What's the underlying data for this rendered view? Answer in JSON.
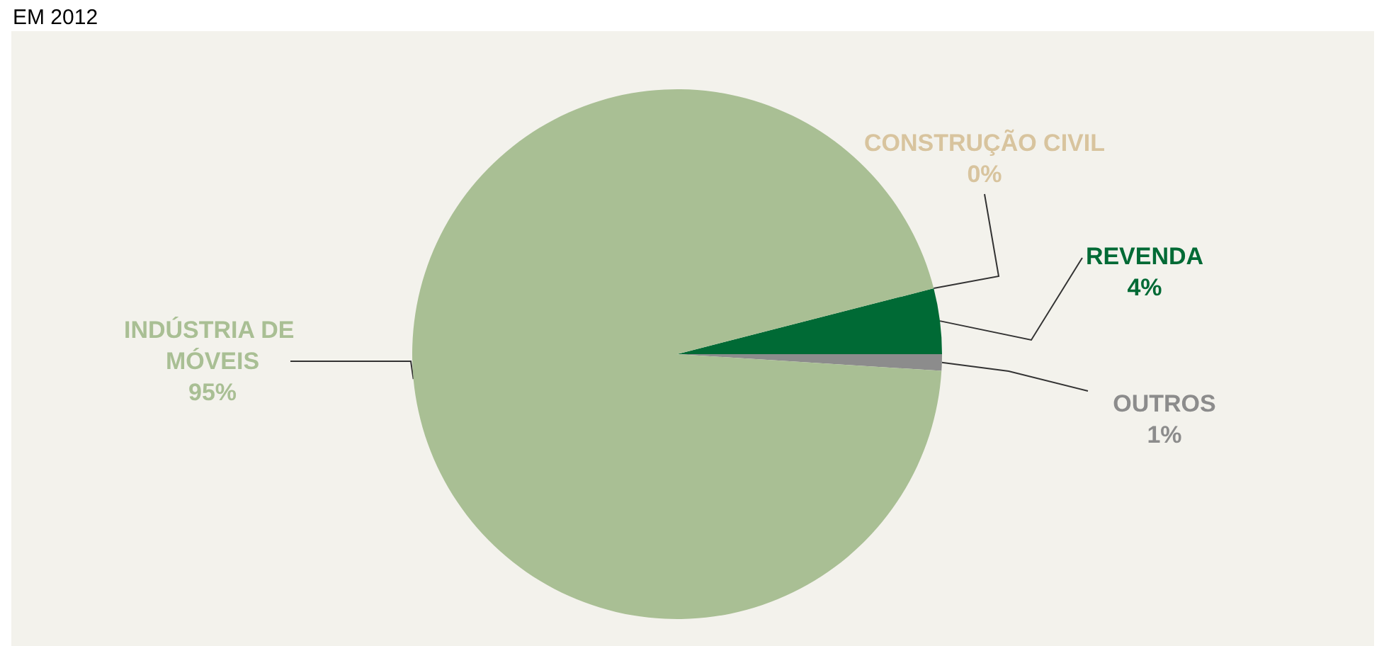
{
  "chart_data": {
    "type": "pie",
    "title": "EM 2012",
    "categories": [
      "REVENDA",
      "OUTROS",
      "INDÚSTRIA DE MÓVEIS",
      "CONSTRUÇÃO CIVIL"
    ],
    "values": [
      4,
      1,
      95,
      0
    ],
    "value_labels": [
      "4%",
      "1%",
      "95%",
      "0%"
    ],
    "colors": [
      "#006a35",
      "#8c8c8c",
      "#a9bf94",
      "#d8c49e"
    ],
    "legend": false
  }
}
